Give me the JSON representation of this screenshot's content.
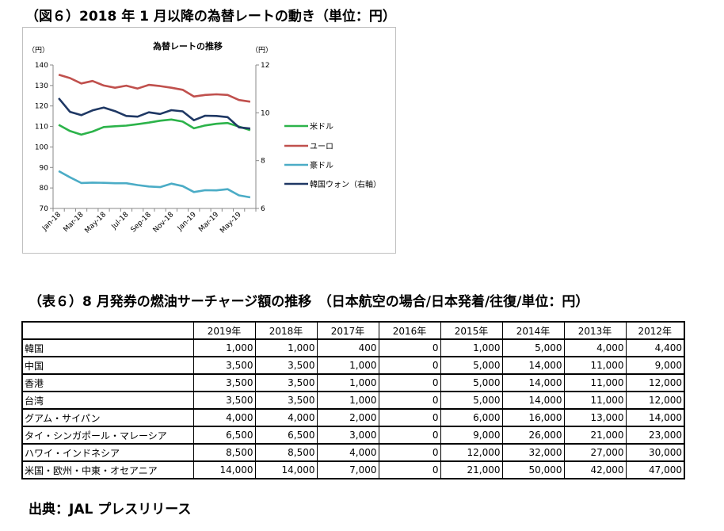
{
  "figure_heading": "（図６）2018 年 1 月以降の為替レートの動き（単位：円）",
  "table_heading": "（表６）8 月発券の燃油サーチャージ額の推移　（日本航空の場合/日本発着/往復/単位：円）",
  "source": "出典：JAL プレスリリース",
  "chart_data": {
    "type": "line",
    "title": "為替レートの推移",
    "left_unit": "（円）",
    "right_unit": "（円）",
    "x": [
      "Jan-18",
      "Feb-18",
      "Mar-18",
      "Apr-18",
      "May-18",
      "Jun-18",
      "Jul-18",
      "Aug-18",
      "Sep-18",
      "Oct-18",
      "Nov-18",
      "Dec-18",
      "Jan-19",
      "Feb-19",
      "Mar-19",
      "Apr-19",
      "May-19",
      "Jun-19"
    ],
    "x_tick_labels": [
      "Jan-18",
      "",
      "Mar-18",
      "",
      "May-18",
      "",
      "Jul-18",
      "",
      "Sep-18",
      "",
      "Nov-18",
      "",
      "Jan-19",
      "",
      "Mar-19",
      "",
      "May-19",
      ""
    ],
    "ylim_left": [
      70,
      140
    ],
    "yticks_left": [
      70,
      80,
      90,
      100,
      110,
      120,
      130,
      140
    ],
    "ylim_right": [
      6,
      12
    ],
    "yticks_right": [
      6,
      8,
      10,
      12
    ],
    "grid": false,
    "legend_position": "right",
    "series": [
      {
        "name": "米ドル",
        "axis": "left",
        "color": "#2cb34a",
        "values": [
          110.8,
          107.8,
          106.0,
          107.5,
          109.7,
          110.1,
          110.4,
          111.1,
          111.9,
          112.8,
          113.4,
          112.4,
          109.1,
          110.5,
          111.3,
          111.7,
          109.9,
          108.2
        ]
      },
      {
        "name": "ユーロ",
        "axis": "left",
        "color": "#c0504d",
        "values": [
          135.3,
          133.6,
          131.0,
          132.2,
          130.0,
          128.9,
          129.9,
          128.5,
          130.3,
          129.7,
          128.9,
          127.9,
          124.6,
          125.4,
          125.7,
          125.4,
          122.9,
          122.1
        ]
      },
      {
        "name": "豪ドル",
        "axis": "left",
        "color": "#4bacc6",
        "values": [
          88.2,
          85.2,
          82.4,
          82.6,
          82.5,
          82.3,
          82.3,
          81.4,
          80.7,
          80.4,
          82.1,
          80.9,
          78.0,
          78.9,
          78.8,
          79.4,
          76.4,
          75.4
        ]
      },
      {
        "name": "韓国ウォン（右軸）",
        "axis": "right",
        "color": "#1f3864",
        "values": [
          10.61,
          10.04,
          9.9,
          10.1,
          10.22,
          10.07,
          9.87,
          9.84,
          10.02,
          9.95,
          10.11,
          10.06,
          9.69,
          9.88,
          9.87,
          9.82,
          9.39,
          9.34
        ]
      }
    ]
  },
  "table": {
    "headers": [
      "",
      "2019年",
      "2018年",
      "2017年",
      "2016年",
      "2015年",
      "2014年",
      "2013年",
      "2012年"
    ],
    "rows": [
      {
        "route": "韓国",
        "values": [
          "1,000",
          "1,000",
          "400",
          "0",
          "1,000",
          "5,000",
          "4,000",
          "4,400"
        ]
      },
      {
        "route": "中国",
        "values": [
          "3,500",
          "3,500",
          "1,000",
          "0",
          "5,000",
          "14,000",
          "11,000",
          "9,000"
        ]
      },
      {
        "route": "香港",
        "values": [
          "3,500",
          "3,500",
          "1,000",
          "0",
          "5,000",
          "14,000",
          "11,000",
          "12,000"
        ]
      },
      {
        "route": "台湾",
        "values": [
          "3,500",
          "3,500",
          "1,000",
          "0",
          "5,000",
          "14,000",
          "11,000",
          "12,000"
        ]
      },
      {
        "route": "グアム・サイパン",
        "values": [
          "4,000",
          "4,000",
          "2,000",
          "0",
          "6,000",
          "16,000",
          "13,000",
          "14,000"
        ]
      },
      {
        "route": "タイ・シンガポール・マレーシア",
        "values": [
          "6,500",
          "6,500",
          "3,000",
          "0",
          "9,000",
          "26,000",
          "21,000",
          "23,000"
        ]
      },
      {
        "route": "ハワイ・インドネシア",
        "values": [
          "8,500",
          "8,500",
          "4,000",
          "0",
          "12,000",
          "32,000",
          "27,000",
          "30,000"
        ]
      },
      {
        "route": "米国・欧州・中東・オセアニア",
        "values": [
          "14,000",
          "14,000",
          "7,000",
          "0",
          "21,000",
          "50,000",
          "42,000",
          "47,000"
        ]
      }
    ]
  }
}
